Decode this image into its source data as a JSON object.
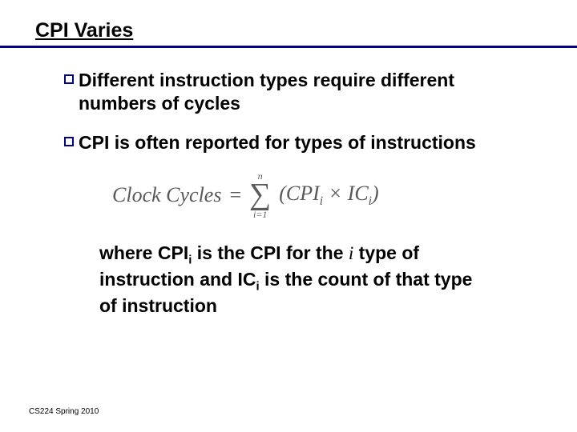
{
  "slide": {
    "title": "CPI Varies",
    "title_color": "#000000",
    "rule_color": "#00008b",
    "background_color": "#ffffff",
    "bullets": [
      {
        "text": "Different instruction types require different numbers of cycles"
      },
      {
        "text": "CPI is often reported for types of instructions"
      }
    ],
    "formula": {
      "lhs": "Clock Cycles",
      "eq": "=",
      "sum_upper": "n",
      "sum_lower": "i=1",
      "body_open": "(",
      "term1": "CPI",
      "term1_sub": "i",
      "times": "×",
      "term2": "IC",
      "term2_sub": "i",
      "body_close": ")",
      "color": "#595959"
    },
    "explanation": {
      "prefix": "where CPI",
      "sub1": "i",
      "mid1": " is the CPI for the ",
      "ivar": "i",
      "mid2": " type of instruction and IC",
      "sub2": "i",
      "suffix": " is the count of that type of instruction"
    },
    "footer": "CS224 Spring 2010",
    "bullet_marker_color": "#00008b"
  }
}
